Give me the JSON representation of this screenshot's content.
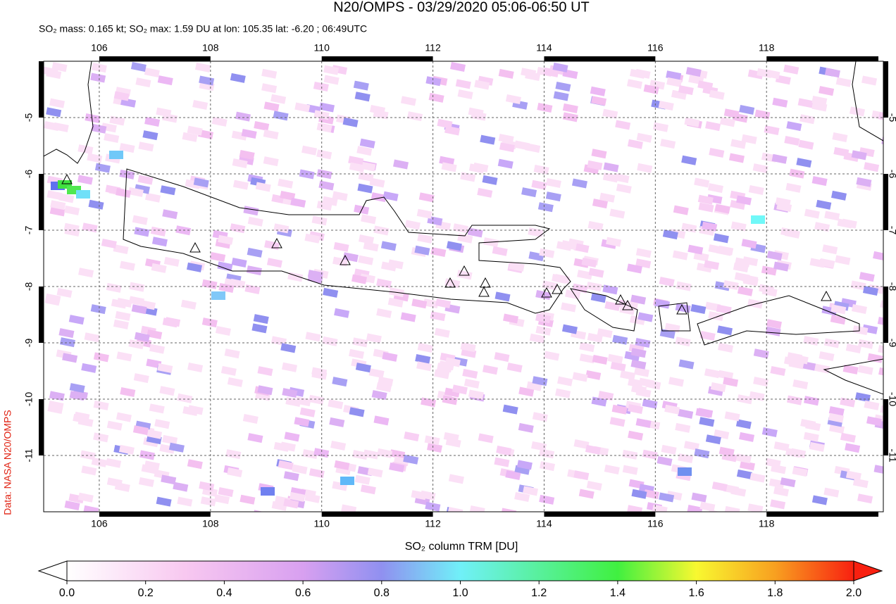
{
  "title": "N20/OMPS - 03/29/2020 05:06-06:50 UT",
  "subtitle": "SO₂ mass: 0.165 kt; SO₂ max: 1.59 DU at lon: 105.35 lat: -6.20 ; 06:49UTC",
  "map": {
    "xlim": [
      105,
      120.1
    ],
    "ylim": [
      -12,
      -4
    ],
    "lon_ticks": [
      106,
      108,
      110,
      112,
      114,
      116,
      118
    ],
    "lat_ticks": [
      -5,
      -6,
      -7,
      -8,
      -9,
      -10,
      -11
    ]
  },
  "colorbar": {
    "label": "SO₂ column TRM [DU]",
    "range": [
      0,
      2
    ],
    "ticks": [
      {
        "value": 0,
        "label": "0.0"
      },
      {
        "value": 0.2,
        "label": "0.2"
      },
      {
        "value": 0.4,
        "label": "0.4"
      },
      {
        "value": 0.6,
        "label": "0.6"
      },
      {
        "value": 0.8,
        "label": "0.8"
      },
      {
        "value": 1,
        "label": "1.0"
      },
      {
        "value": 1.2,
        "label": "1.2"
      },
      {
        "value": 1.4,
        "label": "1.4"
      },
      {
        "value": 1.6,
        "label": "1.6"
      },
      {
        "value": 1.8,
        "label": "1.8"
      },
      {
        "value": 2,
        "label": "2.0"
      }
    ]
  },
  "credit": "Data: NASA N20/OMPS"
}
